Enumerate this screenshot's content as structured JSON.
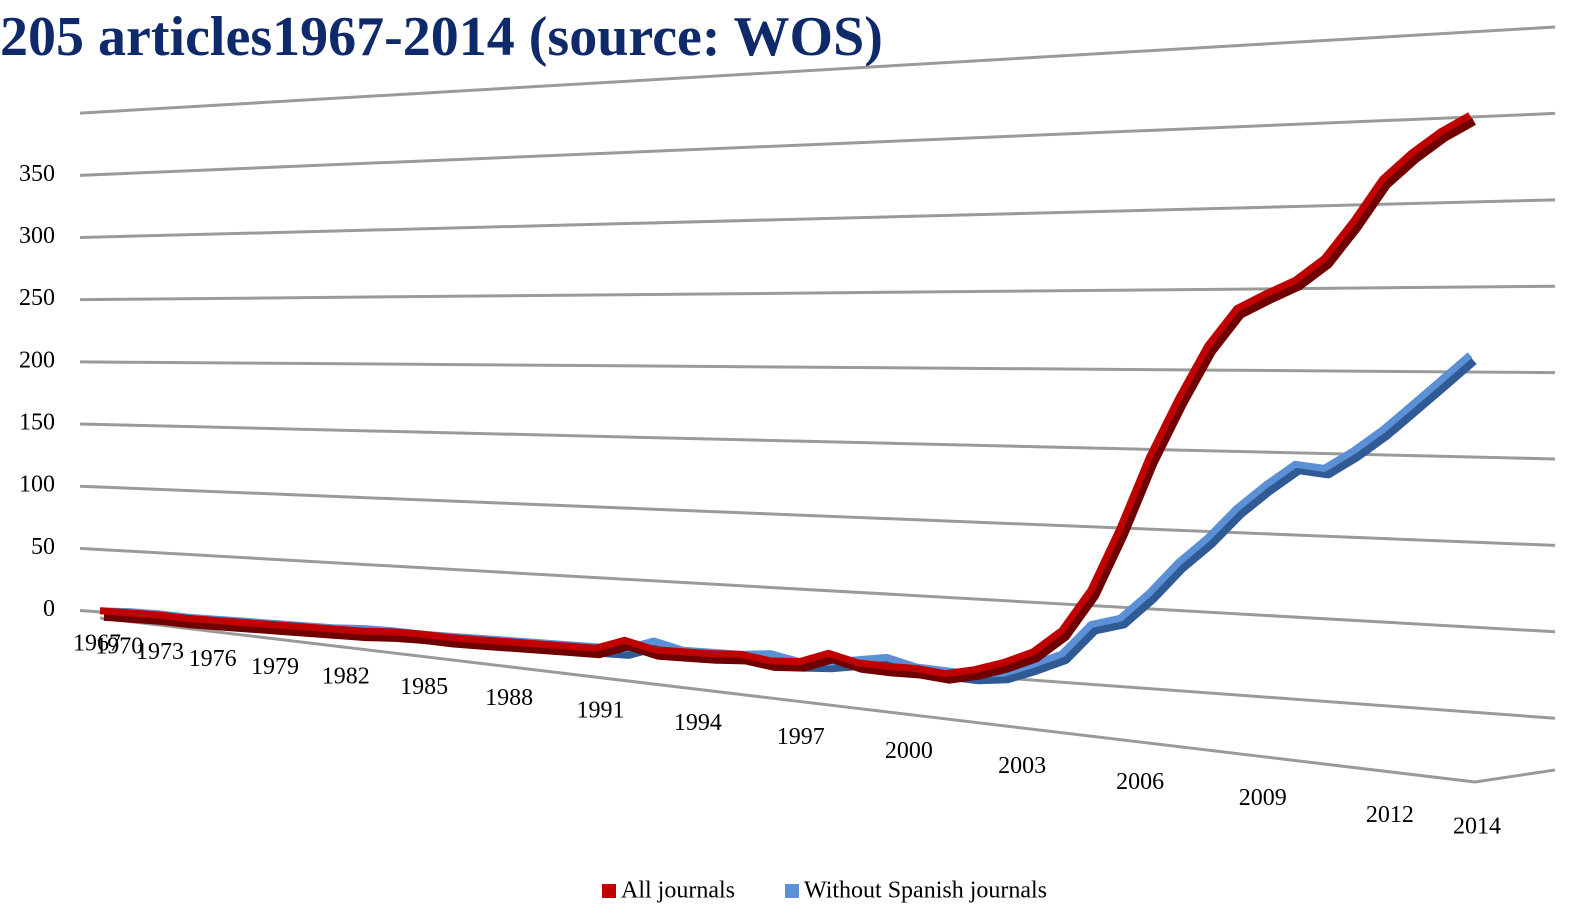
{
  "chart_data": {
    "type": "line",
    "title": "205 articles1967-2014 (source: WOS)",
    "categories": [
      "1967",
      null,
      null,
      "1970",
      null,
      null,
      "1973",
      null,
      null,
      "1976",
      null,
      null,
      "1979",
      null,
      null,
      "1982",
      null,
      null,
      "1985",
      null,
      null,
      "1988",
      null,
      null,
      "1991",
      null,
      null,
      "1994",
      null,
      null,
      "1997",
      null,
      null,
      "2000",
      null,
      null,
      "2003",
      null,
      null,
      "2006",
      null,
      null,
      "2009",
      null,
      null,
      "2012",
      null,
      "2014"
    ],
    "series": [
      {
        "name": "All journals",
        "color": "#c00000",
        "values": [
          1,
          1,
          1,
          0,
          0,
          0,
          0,
          0,
          0,
          0,
          1,
          1,
          0,
          0,
          0,
          0,
          0,
          0,
          7,
          2,
          2,
          2,
          3,
          0,
          1,
          8,
          3,
          2,
          2,
          0,
          4,
          10,
          18,
          33,
          60,
          100,
          145,
          182,
          215,
          238,
          247,
          255,
          268,
          290,
          315,
          330,
          342,
          351
        ]
      },
      {
        "name": "Without Spanish journals",
        "color": "#5b8fd6",
        "values": [
          1,
          2,
          2,
          1,
          1,
          1,
          1,
          1,
          1,
          2,
          2,
          1,
          1,
          1,
          1,
          1,
          1,
          1,
          1,
          8,
          3,
          3,
          3,
          5,
          1,
          2,
          5,
          8,
          3,
          2,
          1,
          3,
          10,
          18,
          38,
          43,
          60,
          80,
          96,
          115,
          130,
          143,
          141,
          152,
          165,
          180,
          195,
          210
        ]
      }
    ],
    "ylim": [
      0,
      400
    ],
    "yticks": [
      0,
      50,
      100,
      150,
      200,
      250,
      300,
      350
    ],
    "grid": true,
    "legend": "bottom"
  }
}
